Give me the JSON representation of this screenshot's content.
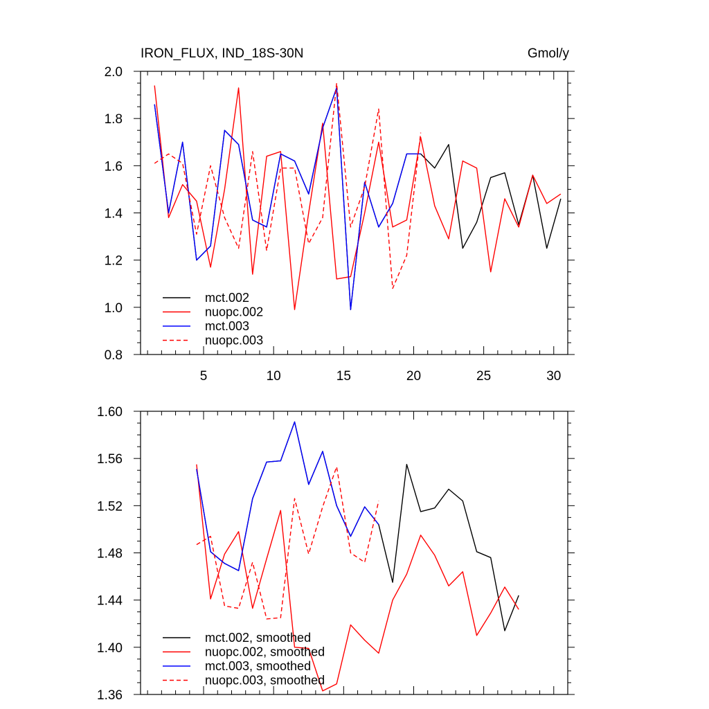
{
  "chart_data": [
    {
      "type": "line",
      "title": "IRON_FLUX, IND_18S-30N",
      "units": "Gmol/y",
      "xlim": [
        0.5,
        31
      ],
      "ylim": [
        0.8,
        2.0
      ],
      "xticks": [
        5,
        10,
        15,
        20,
        25,
        30
      ],
      "xtick_labels": [
        "5",
        "10",
        "15",
        "20",
        "25",
        "30"
      ],
      "yticks": [
        0.8,
        1.0,
        1.2,
        1.4,
        1.6,
        1.8,
        2.0
      ],
      "ytick_labels": [
        "0.8",
        "1.0",
        "1.2",
        "1.4",
        "1.6",
        "1.8",
        "2.0"
      ],
      "legend_position": "bottom-left",
      "series": [
        {
          "name": "mct.002",
          "color": "#000000",
          "dash": "solid",
          "x": [
            1.5,
            2.5,
            3.5,
            4.5,
            5.5,
            6.5,
            7.5,
            8.5,
            9.5,
            10.5,
            11.5,
            12.5,
            13.5,
            14.5,
            15.5,
            16.5,
            17.5,
            18.5,
            19.5,
            20.5,
            21.5,
            22.5,
            23.5,
            24.5,
            25.5,
            26.5,
            27.5,
            28.5,
            29.5,
            30.5
          ],
          "values": [
            1.86,
            1.4,
            1.7,
            1.2,
            1.26,
            1.75,
            1.69,
            1.37,
            1.34,
            1.65,
            1.62,
            1.48,
            1.76,
            1.93,
            0.99,
            1.53,
            1.34,
            1.44,
            1.65,
            1.65,
            1.59,
            1.69,
            1.25,
            1.36,
            1.55,
            1.57,
            1.35,
            1.56,
            1.25,
            1.46
          ]
        },
        {
          "name": "nuopc.002",
          "color": "#ff0000",
          "dash": "solid",
          "x": [
            1.5,
            2.5,
            3.5,
            4.5,
            5.5,
            6.5,
            7.5,
            8.5,
            9.5,
            10.5,
            11.5,
            12.5,
            13.5,
            14.5,
            15.5,
            16.5,
            17.5,
            18.5,
            19.5,
            20.5,
            21.5,
            22.5,
            23.5,
            24.5,
            25.5,
            26.5,
            27.5,
            28.5,
            29.5,
            30.5
          ],
          "values": [
            1.94,
            1.38,
            1.52,
            1.45,
            1.17,
            1.5,
            1.93,
            1.14,
            1.64,
            1.66,
            0.99,
            1.4,
            1.78,
            1.12,
            1.13,
            1.4,
            1.7,
            1.34,
            1.37,
            1.72,
            1.43,
            1.29,
            1.62,
            1.59,
            1.15,
            1.46,
            1.34,
            1.56,
            1.44,
            1.48
          ]
        },
        {
          "name": "mct.003",
          "color": "#0000ff",
          "dash": "solid",
          "x": [
            1.5,
            2.5,
            3.5,
            4.5,
            5.5,
            6.5,
            7.5,
            8.5,
            9.5,
            10.5,
            11.5,
            12.5,
            13.5,
            14.5,
            15.5,
            16.5,
            17.5,
            18.5,
            19.5,
            20.5
          ],
          "values": [
            1.86,
            1.4,
            1.7,
            1.2,
            1.26,
            1.75,
            1.69,
            1.37,
            1.34,
            1.65,
            1.62,
            1.48,
            1.76,
            1.93,
            0.99,
            1.53,
            1.34,
            1.44,
            1.65,
            1.65
          ]
        },
        {
          "name": "nuopc.003",
          "color": "#ff0000",
          "dash": "dashed",
          "x": [
            1.5,
            2.5,
            3.5,
            4.5,
            5.5,
            6.5,
            7.5,
            8.5,
            9.5,
            10.5,
            11.5,
            12.5,
            13.5,
            14.5,
            15.5,
            16.5,
            17.5,
            18.5,
            19.5,
            20.5
          ],
          "values": [
            1.61,
            1.65,
            1.61,
            1.31,
            1.6,
            1.38,
            1.25,
            1.66,
            1.24,
            1.59,
            1.59,
            1.27,
            1.38,
            1.95,
            1.34,
            1.51,
            1.84,
            1.08,
            1.22,
            1.74
          ]
        }
      ]
    },
    {
      "type": "line",
      "title": "",
      "xlim": [
        0.5,
        31
      ],
      "ylim": [
        1.36,
        1.6
      ],
      "xticks": [
        5,
        10,
        15,
        20,
        25,
        30
      ],
      "xtick_labels": [],
      "yticks": [
        1.36,
        1.4,
        1.44,
        1.48,
        1.52,
        1.56,
        1.6
      ],
      "ytick_labels": [
        "1.36",
        "1.40",
        "1.44",
        "1.48",
        "1.52",
        "1.56",
        "1.60"
      ],
      "legend_position": "bottom-left",
      "series": [
        {
          "name": "mct.002, smoothed",
          "color": "#000000",
          "dash": "solid",
          "x": [
            4.5,
            5.5,
            6.5,
            7.5,
            8.5,
            9.5,
            10.5,
            11.5,
            12.5,
            13.5,
            14.5,
            15.5,
            16.5,
            17.5,
            18.5,
            19.5,
            20.5,
            21.5,
            22.5,
            23.5,
            24.5,
            25.5,
            26.5,
            27.5
          ],
          "values": [
            1.551,
            1.481,
            1.471,
            1.465,
            1.526,
            1.557,
            1.558,
            1.591,
            1.538,
            1.566,
            1.52,
            1.494,
            1.519,
            1.504,
            1.455,
            1.555,
            1.515,
            1.518,
            1.534,
            1.524,
            1.481,
            1.476,
            1.414,
            1.444
          ]
        },
        {
          "name": "nuopc.002, smoothed",
          "color": "#ff0000",
          "dash": "solid",
          "x": [
            4.5,
            5.5,
            6.5,
            7.5,
            8.5,
            9.5,
            10.5,
            11.5,
            12.5,
            13.5,
            14.5,
            15.5,
            16.5,
            17.5,
            18.5,
            19.5,
            20.5,
            21.5,
            22.5,
            23.5,
            24.5,
            25.5,
            26.5,
            27.5
          ],
          "values": [
            1.555,
            1.441,
            1.479,
            1.498,
            1.433,
            1.475,
            1.516,
            1.4,
            1.399,
            1.363,
            1.369,
            1.419,
            1.406,
            1.395,
            1.44,
            1.462,
            1.495,
            1.478,
            1.452,
            1.464,
            1.41,
            1.429,
            1.451,
            1.432
          ]
        },
        {
          "name": "mct.003, smoothed",
          "color": "#0000ff",
          "dash": "solid",
          "x": [
            4.5,
            5.5,
            6.5,
            7.5,
            8.5,
            9.5,
            10.5,
            11.5,
            12.5,
            13.5,
            14.5,
            15.5,
            16.5,
            17.5
          ],
          "values": [
            1.551,
            1.481,
            1.471,
            1.465,
            1.526,
            1.557,
            1.558,
            1.591,
            1.538,
            1.566,
            1.52,
            1.494,
            1.519,
            1.504
          ]
        },
        {
          "name": "nuopc.003, smoothed",
          "color": "#ff0000",
          "dash": "dashed",
          "x": [
            4.5,
            5.5,
            6.5,
            7.5,
            8.5,
            9.5,
            10.5,
            11.5,
            12.5,
            13.5,
            14.5,
            15.5,
            16.5,
            17.5
          ],
          "values": [
            1.487,
            1.494,
            1.435,
            1.433,
            1.472,
            1.424,
            1.425,
            1.526,
            1.479,
            1.519,
            1.553,
            1.48,
            1.472,
            1.524
          ]
        }
      ]
    }
  ]
}
